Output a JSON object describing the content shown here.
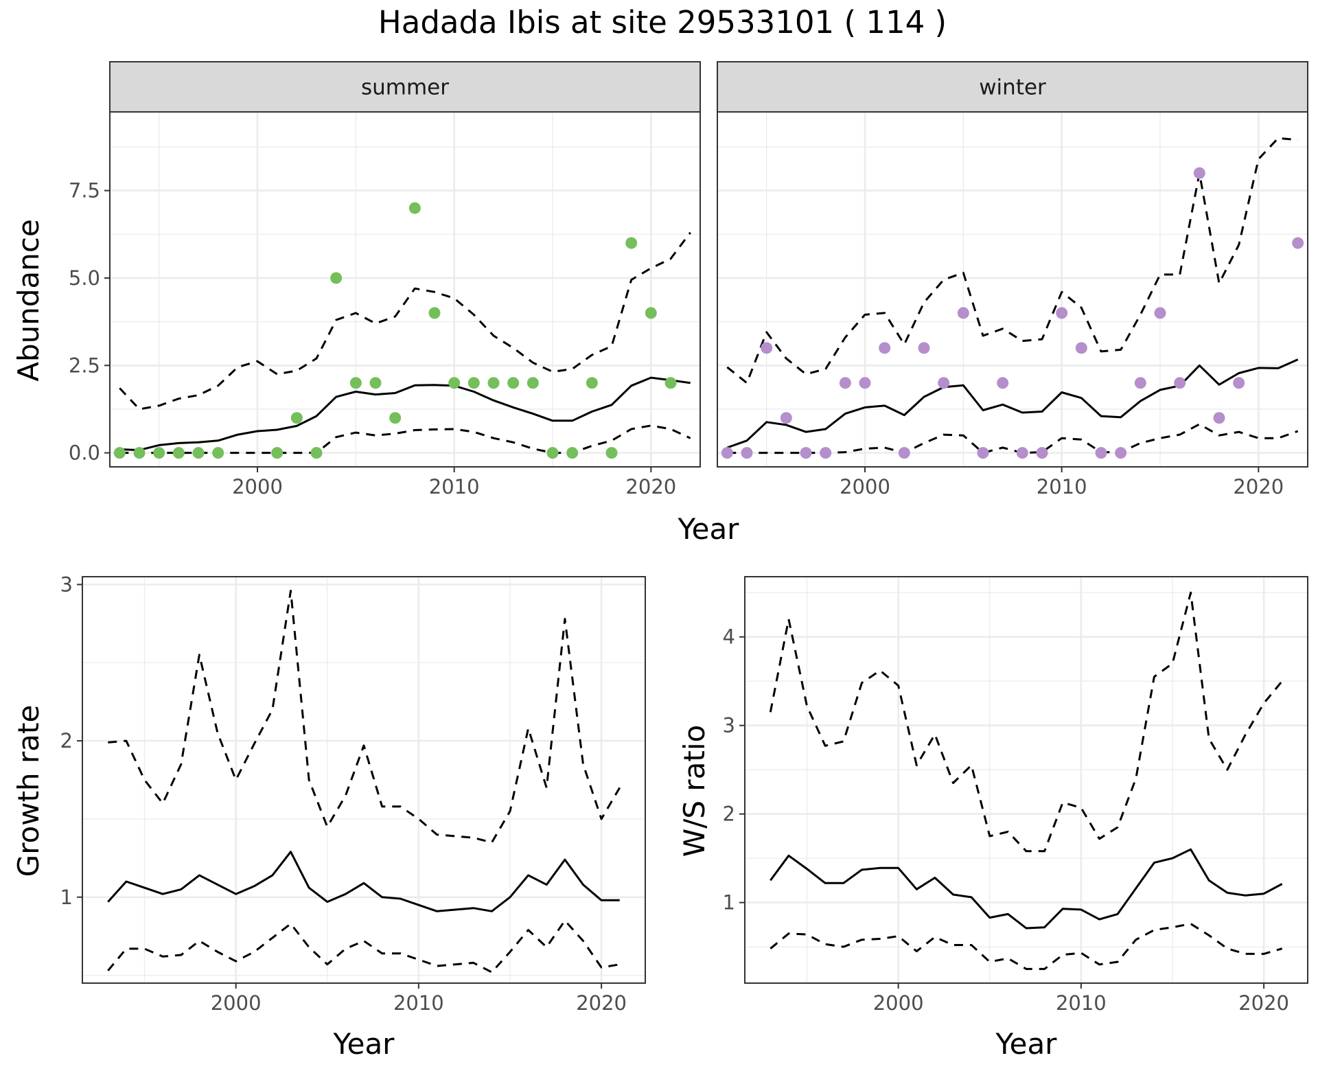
{
  "title": "Hadada Ibis at site 29533101 ( 114 )",
  "colors": {
    "summer": "#74bf5b",
    "winter": "#b48fcb",
    "line": "#000000",
    "strip": "#d9d9d9",
    "grid": "#ebebeb"
  },
  "chart_data": [
    {
      "type": "line",
      "panel": "summer",
      "strip": "summer",
      "xlabel": "Year",
      "ylabel": "Abundance",
      "xlim": [
        1992.5,
        2022.5
      ],
      "ylim": [
        -0.4,
        9.75
      ],
      "xticks": [
        {
          "v": 2000,
          "label": "2000"
        },
        {
          "v": 2010,
          "label": "2010"
        },
        {
          "v": 2020,
          "label": "2020"
        }
      ],
      "yticks": [
        {
          "v": 0,
          "label": "0.0"
        },
        {
          "v": 2.5,
          "label": "2.5"
        },
        {
          "v": 5,
          "label": "5.0"
        },
        {
          "v": 7.5,
          "label": "7.5"
        }
      ],
      "show_ylabel": true,
      "show_yticks": true,
      "series": [
        {
          "style": "solid",
          "x": [
            1993,
            1994,
            1995,
            1996,
            1997,
            1998,
            1999,
            2000,
            2001,
            2002,
            2003,
            2004,
            2005,
            2006,
            2007,
            2008,
            2009,
            2010,
            2011,
            2012,
            2013,
            2014,
            2015,
            2016,
            2017,
            2018,
            2019,
            2020,
            2021,
            2022
          ],
          "y": [
            0.1,
            0.08,
            0.22,
            0.28,
            0.3,
            0.35,
            0.52,
            0.62,
            0.66,
            0.77,
            1.05,
            1.6,
            1.75,
            1.67,
            1.71,
            1.93,
            1.94,
            1.92,
            1.75,
            1.5,
            1.3,
            1.12,
            0.92,
            0.92,
            1.18,
            1.37,
            1.92,
            2.15,
            2.08,
            2.0
          ]
        },
        {
          "style": "dashed",
          "x": [
            1993,
            1994,
            1995,
            1996,
            1997,
            1998,
            1999,
            2000,
            2001,
            2002,
            2003,
            2004,
            2005,
            2006,
            2007,
            2008,
            2009,
            2010,
            2011,
            2012,
            2013,
            2014,
            2015,
            2016,
            2017,
            2018,
            2019,
            2020,
            2021,
            2022
          ],
          "y": [
            1.85,
            1.25,
            1.35,
            1.55,
            1.65,
            1.92,
            2.45,
            2.62,
            2.25,
            2.35,
            2.7,
            3.8,
            4.0,
            3.7,
            3.9,
            4.7,
            4.6,
            4.42,
            3.95,
            3.35,
            3.0,
            2.58,
            2.32,
            2.4,
            2.8,
            3.05,
            4.95,
            5.28,
            5.55,
            6.3
          ]
        },
        {
          "style": "dashed",
          "x": [
            1993,
            1994,
            1995,
            1996,
            1997,
            1998,
            1999,
            2000,
            2001,
            2002,
            2003,
            2004,
            2005,
            2006,
            2007,
            2008,
            2009,
            2010,
            2011,
            2012,
            2013,
            2014,
            2015,
            2016,
            2017,
            2018,
            2019,
            2020,
            2021,
            2022
          ],
          "y": [
            0,
            0,
            0,
            0,
            0,
            0,
            0,
            0,
            0,
            0,
            0,
            0.45,
            0.58,
            0.5,
            0.55,
            0.65,
            0.67,
            0.68,
            0.6,
            0.42,
            0.3,
            0.12,
            0,
            0,
            0.2,
            0.35,
            0.68,
            0.78,
            0.68,
            0.42
          ]
        }
      ],
      "points": {
        "x": [
          1993,
          1994,
          1995,
          1996,
          1997,
          1998,
          2001,
          2002,
          2003,
          2004,
          2005,
          2006,
          2007,
          2008,
          2009,
          2010,
          2011,
          2012,
          2013,
          2014,
          2015,
          2016,
          2017,
          2018,
          2019,
          2020,
          2021
        ],
        "y": [
          0,
          0,
          0,
          0,
          0,
          0,
          0,
          1,
          0,
          5,
          2,
          2,
          1,
          7,
          4,
          2,
          2,
          2,
          2,
          2,
          0,
          0,
          2,
          0,
          6,
          4,
          2
        ]
      }
    },
    {
      "type": "line",
      "panel": "winter",
      "strip": "winter",
      "xlabel": "Year",
      "ylabel": "",
      "xlim": [
        1992.5,
        2022.5
      ],
      "ylim": [
        -0.4,
        9.75
      ],
      "xticks": [
        {
          "v": 2000,
          "label": "2000"
        },
        {
          "v": 2010,
          "label": "2010"
        },
        {
          "v": 2020,
          "label": "2020"
        }
      ],
      "yticks": [
        {
          "v": 0,
          "label": "0.0"
        },
        {
          "v": 2.5,
          "label": "2.5"
        },
        {
          "v": 5,
          "label": "5.0"
        },
        {
          "v": 7.5,
          "label": "7.5"
        }
      ],
      "show_ylabel": false,
      "show_yticks": false,
      "series": [
        {
          "style": "solid",
          "x": [
            1993,
            1994,
            1995,
            1996,
            1997,
            1998,
            1999,
            2000,
            2001,
            2002,
            2003,
            2004,
            2005,
            2006,
            2007,
            2008,
            2009,
            2010,
            2011,
            2012,
            2013,
            2014,
            2015,
            2016,
            2017,
            2018,
            2019,
            2020,
            2021,
            2022
          ],
          "y": [
            0.15,
            0.35,
            0.88,
            0.8,
            0.6,
            0.68,
            1.12,
            1.3,
            1.35,
            1.08,
            1.6,
            1.88,
            1.93,
            1.22,
            1.38,
            1.15,
            1.18,
            1.73,
            1.57,
            1.05,
            1.02,
            1.48,
            1.8,
            1.92,
            2.5,
            1.95,
            2.28,
            2.43,
            2.42,
            2.67
          ]
        },
        {
          "style": "dashed",
          "x": [
            1993,
            1994,
            1995,
            1996,
            1997,
            1998,
            1999,
            2000,
            2001,
            2002,
            2003,
            2004,
            2005,
            2006,
            2007,
            2008,
            2009,
            2010,
            2011,
            2012,
            2013,
            2014,
            2015,
            2016,
            2017,
            2018,
            2019,
            2020,
            2021,
            2022
          ],
          "y": [
            2.45,
            2.0,
            3.45,
            2.7,
            2.25,
            2.4,
            3.3,
            3.95,
            4.0,
            3.1,
            4.3,
            4.95,
            5.15,
            3.35,
            3.55,
            3.2,
            3.25,
            4.6,
            4.15,
            2.9,
            2.95,
            3.95,
            5.1,
            5.1,
            8.0,
            4.85,
            5.95,
            8.4,
            9.0,
            8.95
          ]
        },
        {
          "style": "dashed",
          "x": [
            1993,
            1994,
            1995,
            1996,
            1997,
            1998,
            1999,
            2000,
            2001,
            2002,
            2003,
            2004,
            2005,
            2006,
            2007,
            2008,
            2009,
            2010,
            2011,
            2012,
            2013,
            2014,
            2015,
            2016,
            2017,
            2018,
            2019,
            2020,
            2021,
            2022
          ],
          "y": [
            0,
            0,
            0,
            0,
            0,
            0,
            0.02,
            0.12,
            0.15,
            0,
            0.28,
            0.52,
            0.5,
            0,
            0.15,
            0,
            0.02,
            0.42,
            0.38,
            0.02,
            0.02,
            0.28,
            0.42,
            0.52,
            0.82,
            0.5,
            0.6,
            0.42,
            0.42,
            0.62
          ]
        }
      ],
      "points": {
        "x": [
          1993,
          1994,
          1995,
          1996,
          1997,
          1998,
          1999,
          2000,
          2001,
          2002,
          2003,
          2004,
          2005,
          2006,
          2007,
          2008,
          2009,
          2010,
          2011,
          2012,
          2013,
          2014,
          2015,
          2016,
          2017,
          2018,
          2019,
          2022
        ],
        "y": [
          0,
          0,
          3,
          1,
          0,
          0,
          2,
          2,
          3,
          0,
          3,
          2,
          4,
          0,
          2,
          0,
          0,
          4,
          3,
          0,
          0,
          2,
          4,
          2,
          8,
          1,
          2,
          6
        ]
      }
    },
    {
      "type": "line",
      "panel": "growth",
      "strip": "",
      "xlabel": "Year",
      "ylabel": "Growth rate",
      "xlim": [
        1991.6,
        2022.4
      ],
      "ylim": [
        0.45,
        3.05
      ],
      "xticks": [
        {
          "v": 2000,
          "label": "2000"
        },
        {
          "v": 2010,
          "label": "2010"
        },
        {
          "v": 2020,
          "label": "2020"
        }
      ],
      "yticks": [
        {
          "v": 1,
          "label": "1"
        },
        {
          "v": 2,
          "label": "2"
        },
        {
          "v": 3,
          "label": "3"
        }
      ],
      "show_ylabel": true,
      "show_yticks": true,
      "series": [
        {
          "style": "solid",
          "x": [
            1993,
            1994,
            1995,
            1996,
            1997,
            1998,
            1999,
            2000,
            2001,
            2002,
            2003,
            2004,
            2005,
            2006,
            2007,
            2008,
            2009,
            2010,
            2011,
            2012,
            2013,
            2014,
            2015,
            2016,
            2017,
            2018,
            2019,
            2020,
            2021
          ],
          "y": [
            0.97,
            1.1,
            1.06,
            1.02,
            1.05,
            1.14,
            1.08,
            1.02,
            1.07,
            1.14,
            1.29,
            1.06,
            0.97,
            1.02,
            1.09,
            1.0,
            0.99,
            0.95,
            0.91,
            0.92,
            0.93,
            0.91,
            1.0,
            1.14,
            1.08,
            1.24,
            1.08,
            0.98,
            0.98
          ]
        },
        {
          "style": "dashed",
          "x": [
            1993,
            1994,
            1995,
            1996,
            1997,
            1998,
            1999,
            2000,
            2001,
            2002,
            2003,
            2004,
            2005,
            2006,
            2007,
            2008,
            2009,
            2010,
            2011,
            2012,
            2013,
            2014,
            2015,
            2016,
            2017,
            2018,
            2019,
            2020,
            2021
          ],
          "y": [
            1.99,
            2.0,
            1.75,
            1.6,
            1.85,
            2.55,
            2.05,
            1.75,
            1.98,
            2.2,
            2.96,
            1.75,
            1.45,
            1.65,
            1.97,
            1.58,
            1.58,
            1.5,
            1.4,
            1.39,
            1.38,
            1.35,
            1.55,
            2.08,
            1.7,
            2.78,
            1.85,
            1.5,
            1.7
          ]
        },
        {
          "style": "dashed",
          "x": [
            1993,
            1994,
            1995,
            1996,
            1997,
            1998,
            1999,
            2000,
            2001,
            2002,
            2003,
            2004,
            2005,
            2006,
            2007,
            2008,
            2009,
            2010,
            2011,
            2012,
            2013,
            2014,
            2015,
            2016,
            2017,
            2018,
            2019,
            2020,
            2021
          ],
          "y": [
            0.53,
            0.67,
            0.67,
            0.62,
            0.63,
            0.72,
            0.65,
            0.59,
            0.65,
            0.74,
            0.83,
            0.68,
            0.57,
            0.67,
            0.72,
            0.64,
            0.64,
            0.6,
            0.56,
            0.57,
            0.58,
            0.52,
            0.65,
            0.79,
            0.68,
            0.85,
            0.72,
            0.55,
            0.57
          ]
        }
      ]
    },
    {
      "type": "line",
      "panel": "ratio",
      "strip": "",
      "xlabel": "Year",
      "ylabel": "W/S ratio",
      "xlim": [
        1991.6,
        2022.4
      ],
      "ylim": [
        0.09,
        4.68
      ],
      "xticks": [
        {
          "v": 2000,
          "label": "2000"
        },
        {
          "v": 2010,
          "label": "2010"
        },
        {
          "v": 2020,
          "label": "2020"
        }
      ],
      "yticks": [
        {
          "v": 1,
          "label": "1"
        },
        {
          "v": 2,
          "label": "2"
        },
        {
          "v": 3,
          "label": "3"
        },
        {
          "v": 4,
          "label": "4"
        }
      ],
      "show_ylabel": true,
      "show_yticks": true,
      "series": [
        {
          "style": "solid",
          "x": [
            1993,
            1994,
            1995,
            1996,
            1997,
            1998,
            1999,
            2000,
            2001,
            2002,
            2003,
            2004,
            2005,
            2006,
            2007,
            2008,
            2009,
            2010,
            2011,
            2012,
            2013,
            2014,
            2015,
            2016,
            2017,
            2018,
            2019,
            2020,
            2021
          ],
          "y": [
            1.25,
            1.53,
            1.38,
            1.22,
            1.22,
            1.37,
            1.39,
            1.39,
            1.15,
            1.28,
            1.09,
            1.06,
            0.83,
            0.87,
            0.71,
            0.72,
            0.93,
            0.92,
            0.81,
            0.87,
            1.16,
            1.45,
            1.5,
            1.6,
            1.25,
            1.11,
            1.08,
            1.1,
            1.21
          ]
        },
        {
          "style": "dashed",
          "x": [
            1993,
            1994,
            1995,
            1996,
            1997,
            1998,
            1999,
            2000,
            2001,
            2002,
            2003,
            2004,
            2005,
            2006,
            2007,
            2008,
            2009,
            2010,
            2011,
            2012,
            2013,
            2014,
            2015,
            2016,
            2017,
            2018,
            2019,
            2020,
            2021
          ],
          "y": [
            3.15,
            4.2,
            3.22,
            2.77,
            2.82,
            3.48,
            3.62,
            3.45,
            2.55,
            2.9,
            2.35,
            2.55,
            1.75,
            1.8,
            1.58,
            1.58,
            2.13,
            2.07,
            1.72,
            1.85,
            2.4,
            3.55,
            3.7,
            4.5,
            2.85,
            2.5,
            2.9,
            3.25,
            3.5
          ]
        },
        {
          "style": "dashed",
          "x": [
            1993,
            1994,
            1995,
            1996,
            1997,
            1998,
            1999,
            2000,
            2001,
            2002,
            2003,
            2004,
            2005,
            2006,
            2007,
            2008,
            2009,
            2010,
            2011,
            2012,
            2013,
            2014,
            2015,
            2016,
            2017,
            2018,
            2019,
            2020,
            2021
          ],
          "y": [
            0.48,
            0.65,
            0.64,
            0.53,
            0.5,
            0.58,
            0.59,
            0.62,
            0.45,
            0.61,
            0.52,
            0.52,
            0.33,
            0.37,
            0.25,
            0.25,
            0.41,
            0.43,
            0.3,
            0.33,
            0.58,
            0.69,
            0.72,
            0.76,
            0.63,
            0.48,
            0.42,
            0.42,
            0.48
          ]
        }
      ]
    }
  ]
}
